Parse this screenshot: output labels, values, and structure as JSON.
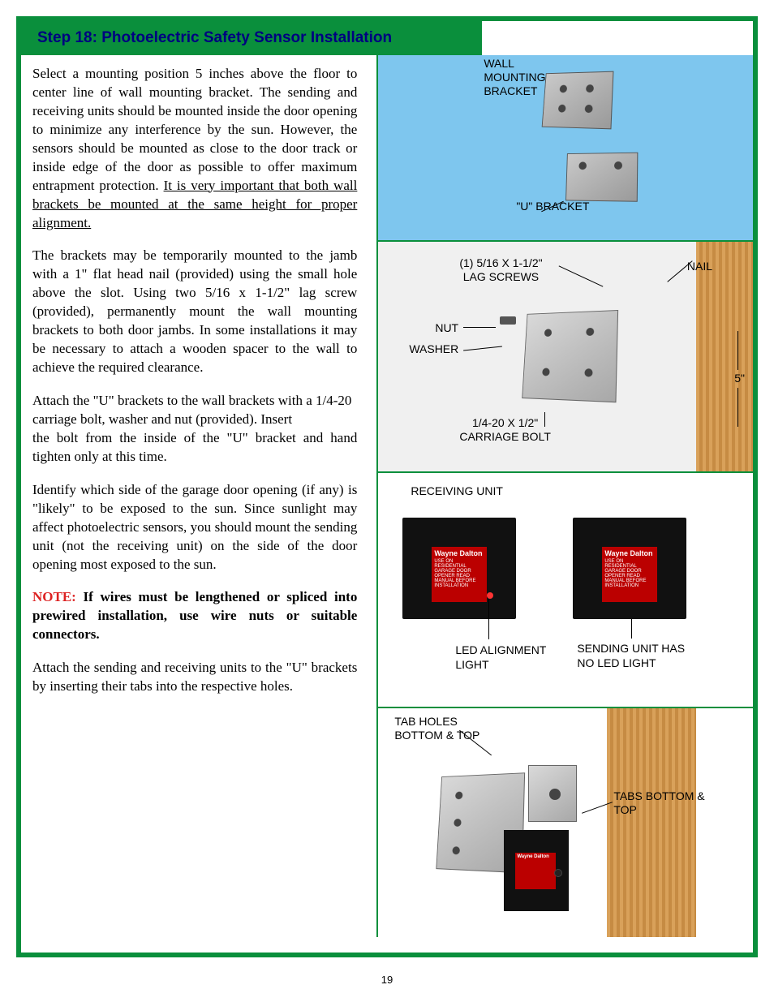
{
  "header": {
    "title": "Step 18:  Photoelectric Safety Sensor Installation"
  },
  "body": {
    "p1_a": "Select a mounting position 5 inches above the floor to center line of wall mounting bracket.  The sending and receiving units should be mounted inside the door opening to minimize any interference by the sun. However, the sensors should be mounted as close to the door track or inside edge of the door as possible to offer maximum entrapment protection.  ",
    "p1_u": "It is very important that both wall brackets be mounted at the same height for proper alignment.",
    "p2": "The brackets may be temporarily mounted to the jamb with a 1\" flat head nail (provided) using the small hole above the slot. Using two 5/16 x 1-1/2\" lag screw (provided), permanently mount the wall mounting brackets to both door jambs. In some installations it may be necessary to attach a wooden spacer to the wall to achieve the required clearance.",
    "p3a": "Attach the \"U\" brackets to the wall brackets with a 1/4-20 carriage bolt, washer and nut (provided). Insert",
    "p3b": "the bolt from the inside of the \"U\" bracket and hand tighten only at this time.",
    "p4": "Identify which side of the garage door opening (if any) is \"likely\" to be exposed to the sun.  Since sunlight may affect photoelectric sensors, you should mount the sending unit (not the receiving unit) on the side of the door opening most exposed to the sun.",
    "note_label": "NOTE:",
    "note_body": " If wires must be lengthened or spliced into prewired installation, use wire nuts or suitable connectors.",
    "p5": "Attach the sending and receiving units to the \"U\" brackets by inserting their tabs into the respective holes."
  },
  "fig1": {
    "wall_bracket": "WALL MOUNTING BRACKET",
    "u_bracket": "\"U\" BRACKET"
  },
  "fig2": {
    "lag_screws": "(1) 5/16 X 1-1/2\" LAG SCREWS",
    "nail": "NAIL",
    "nut": "NUT",
    "washer": "WASHER",
    "carriage_bolt": "1/4-20 X 1/2\" CARRIAGE BOLT",
    "five_in": "5\""
  },
  "fig3": {
    "receiving": "RECEIVING UNIT",
    "led_label": "LED ALIGNMENT LIGHT",
    "sending_label": "SENDING UNIT HAS NO LED LIGHT",
    "brand": "Wayne Dalton",
    "plate_text": "USE ON RESIDENTIAL GARAGE DOOR OPENER READ MANUAL BEFORE INSTALLATION"
  },
  "fig4": {
    "tab_holes": "TAB HOLES BOTTOM & TOP",
    "tabs": "TABS BOTTOM & TOP"
  },
  "page_number": "19"
}
